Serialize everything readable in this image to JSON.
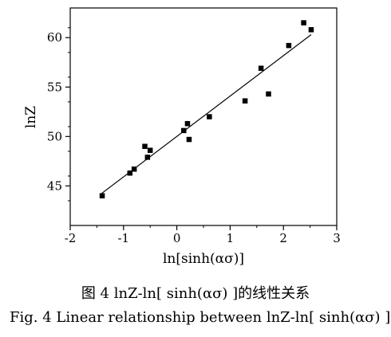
{
  "chart_data": {
    "type": "scatter",
    "title": "",
    "xlabel": "ln[sinh(ασ)]",
    "ylabel": "lnZ",
    "xlim": [
      -2,
      3
    ],
    "ylim": [
      41,
      63
    ],
    "xticks": [
      "-2",
      "-1",
      "0",
      "1",
      "2",
      "3"
    ],
    "yticks": [
      "45",
      "50",
      "55",
      "60"
    ],
    "ytick_values": [
      45,
      50,
      55,
      60
    ],
    "xtick_values": [
      -2,
      -1,
      0,
      1,
      2,
      3
    ],
    "grid": false,
    "marker": "square",
    "points": [
      {
        "x": -1.4,
        "y": 44.0
      },
      {
        "x": -0.88,
        "y": 46.3
      },
      {
        "x": -0.8,
        "y": 46.7
      },
      {
        "x": -0.6,
        "y": 49.0
      },
      {
        "x": -0.55,
        "y": 47.9
      },
      {
        "x": -0.5,
        "y": 48.6
      },
      {
        "x": 0.13,
        "y": 50.6
      },
      {
        "x": 0.2,
        "y": 51.3
      },
      {
        "x": 0.23,
        "y": 49.7
      },
      {
        "x": 0.61,
        "y": 52.0
      },
      {
        "x": 1.28,
        "y": 53.6
      },
      {
        "x": 1.58,
        "y": 56.9
      },
      {
        "x": 1.72,
        "y": 54.3
      },
      {
        "x": 2.1,
        "y": 59.2
      },
      {
        "x": 2.38,
        "y": 61.5
      },
      {
        "x": 2.52,
        "y": 60.8
      }
    ],
    "fit_line": {
      "x": [
        -1.42,
        2.52
      ],
      "y": [
        44.2,
        60.3
      ]
    }
  },
  "captions": {
    "zh": "图 4   lnZ-ln[ sinh(ασ) ]的线性关系",
    "en": "Fig. 4   Linear relationship between lnZ-ln[ sinh(ασ) ]"
  }
}
